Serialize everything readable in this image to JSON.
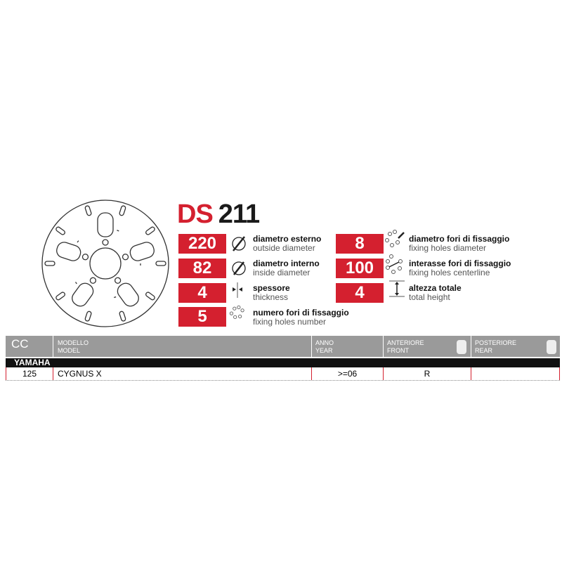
{
  "product": {
    "prefix": "DS",
    "number": "211"
  },
  "specs_left": [
    {
      "value": "220",
      "it": "diametro esterno",
      "en": "outside diameter",
      "icon": "outside-diameter-icon"
    },
    {
      "value": "82",
      "it": "diametro interno",
      "en": "inside diameter",
      "icon": "inside-diameter-icon"
    },
    {
      "value": "4",
      "it": "spessore",
      "en": "thickness",
      "icon": "thickness-icon"
    },
    {
      "value": "5",
      "it": "numero fori di fissaggio",
      "en": "fixing holes number",
      "icon": "fixing-holes-number-icon"
    }
  ],
  "specs_right": [
    {
      "value": "8",
      "it": "diametro fori di fissaggio",
      "en": "fixing holes diameter",
      "icon": "fixing-holes-diameter-icon"
    },
    {
      "value": "100",
      "it": "interasse fori di fissaggio",
      "en": "fixing holes centerline",
      "icon": "fixing-holes-centerline-icon"
    },
    {
      "value": "4",
      "it": "altezza totale",
      "en": "total height",
      "icon": "total-height-icon"
    }
  ],
  "table": {
    "headers": {
      "cc": "CC",
      "model_it": "MODELLO",
      "model_en": "MODEL",
      "year_it": "ANNO",
      "year_en": "YEAR",
      "front_it": "ANTERIORE",
      "front_en": "FRONT",
      "rear_it": "POSTERIORE",
      "rear_en": "REAR"
    },
    "brand": "YAMAHA",
    "rows": [
      {
        "cc": "125",
        "model": "CYGNUS X",
        "year": ">=06",
        "front": "R",
        "rear": ""
      }
    ]
  },
  "colors": {
    "accent": "#d4202f",
    "header": "#9a9a9a"
  }
}
